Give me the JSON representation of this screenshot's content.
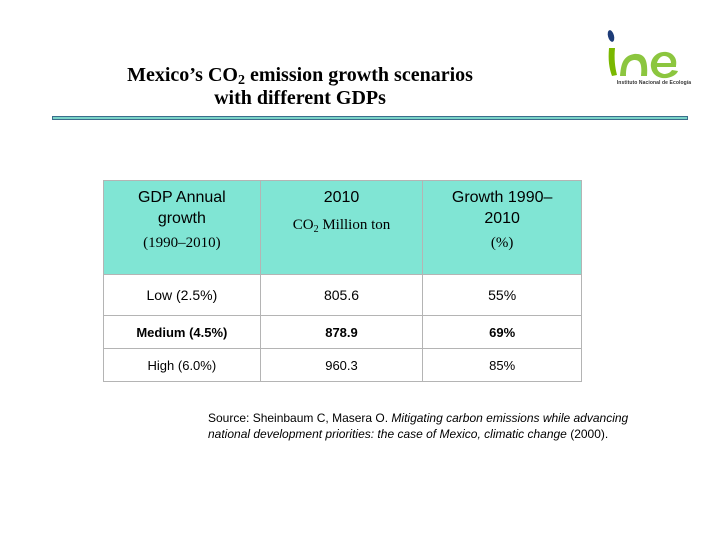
{
  "slide": {
    "title_part1": "Mexico’s CO",
    "title_subscript": "2",
    "title_part2": " emission growth scenarios",
    "title_line2": "with different GDPs"
  },
  "logo": {
    "letters": "ine",
    "caption": "Instituto Nacional de Ecología",
    "colors": {
      "i_stem": "#7ab800",
      "i_dot": "#1e3c78",
      "ne": "#8cc63f"
    }
  },
  "table": {
    "headers": [
      {
        "line1": "GDP Annual",
        "line2": "growth",
        "line3": "(1990–2010)"
      },
      {
        "line1": "2010",
        "line2_prefix": "CO",
        "line2_sub": "2",
        "line2_suffix": " Million ton"
      },
      {
        "line1": "Growth 1990–",
        "line2": "2010",
        "line3": "(%)"
      }
    ],
    "rows": [
      {
        "gdp": "Low (2.5%)",
        "co2": "805.6",
        "growth": "55%"
      },
      {
        "gdp": "Medium (4.5%)",
        "co2": "878.9",
        "growth": "69%"
      },
      {
        "gdp": "High (6.0%)",
        "co2": "960.3",
        "growth": "85%"
      }
    ],
    "colors": {
      "header_bg": "#80e5d4"
    }
  },
  "source": {
    "prefix": "Source: Sheinbaum C, Masera O. ",
    "italic1": "Mitigating carbon emissions while advancing national development priorities: the case of Mexico, climatic change",
    "suffix": " (2000)."
  }
}
